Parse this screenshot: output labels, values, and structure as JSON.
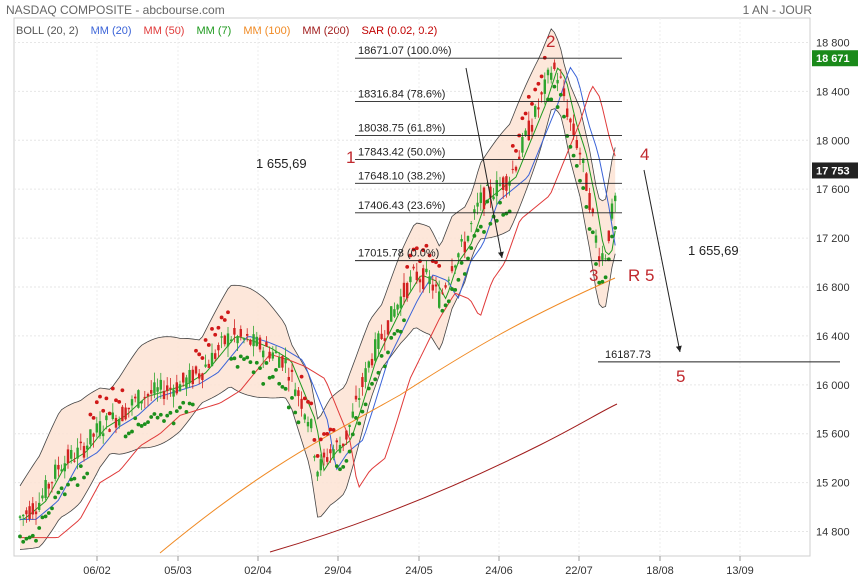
{
  "header": {
    "title": "NASDAQ COMPOSITE - abcbourse.com",
    "period": "1 AN - JOUR"
  },
  "legend": [
    {
      "label": "BOLL (20, 2)",
      "color": "#555555"
    },
    {
      "label": "MM (20)",
      "color": "#3a63d8"
    },
    {
      "label": "MM (50)",
      "color": "#e03a3a"
    },
    {
      "label": "MM (7)",
      "color": "#1f9a1f"
    },
    {
      "label": "MM (100)",
      "color": "#f08a24"
    },
    {
      "label": "MM (200)",
      "color": "#a01c1c"
    },
    {
      "label": "SAR (0.02, 0.2)",
      "color": "#c00000"
    }
  ],
  "colors": {
    "boll_fill": "#fde3d4",
    "up_candle": "#2ea52e",
    "down_candle": "#d22222",
    "price_badge_bg": "#222222",
    "last_badge_bg": "#1a8a1a"
  },
  "chart_data": {
    "type": "line",
    "title": "NASDAQ COMPOSITE",
    "y_axis": {
      "range": [
        14600,
        19000
      ],
      "ticks": [
        "14 800",
        "15 200",
        "15 600",
        "16 000",
        "16 400",
        "16 800",
        "17 200",
        "17 600",
        "18 000",
        "18 400",
        "18 800"
      ],
      "tick_values": [
        14800,
        15200,
        15600,
        16000,
        16400,
        16800,
        17200,
        17600,
        18000,
        18400,
        18800
      ]
    },
    "x_axis": {
      "ticks": [
        "06/02",
        "05/03",
        "02/04",
        "29/04",
        "24/05",
        "24/06",
        "22/07",
        "18/08",
        "13/09"
      ]
    },
    "price_labels": [
      {
        "label": "18 671",
        "value": 18671,
        "style": "last"
      },
      {
        "label": "17 753",
        "value": 17753,
        "style": "current"
      }
    ],
    "fibonacci": [
      {
        "price": "18671.07",
        "pct": "(100.0%)",
        "value": 18671.07
      },
      {
        "price": "18316.84",
        "pct": "(78.6%)",
        "value": 18316.84
      },
      {
        "price": "18038.75",
        "pct": "(61.8%)",
        "value": 18038.75
      },
      {
        "price": "17843.42",
        "pct": "(50.0%)",
        "value": 17843.42
      },
      {
        "price": "17648.10",
        "pct": "(38.2%)",
        "value": 17648.1
      },
      {
        "price": "17406.43",
        "pct": "(23.6%)",
        "value": 17406.43
      },
      {
        "price": "17015.78",
        "pct": "(0.0%)",
        "value": 17015.78
      }
    ],
    "target_line": {
      "label": "16187.73",
      "value": 16187.73
    },
    "annotations": [
      {
        "text": "1 655,69",
        "kind": "distance"
      },
      {
        "text": "1 655,69",
        "kind": "distance"
      },
      {
        "text": "1",
        "kind": "wave"
      },
      {
        "text": "2",
        "kind": "wave"
      },
      {
        "text": "3",
        "kind": "wave"
      },
      {
        "text": "R 5",
        "kind": "wave"
      },
      {
        "text": "4",
        "kind": "wave"
      },
      {
        "text": "5",
        "kind": "wave"
      }
    ]
  }
}
